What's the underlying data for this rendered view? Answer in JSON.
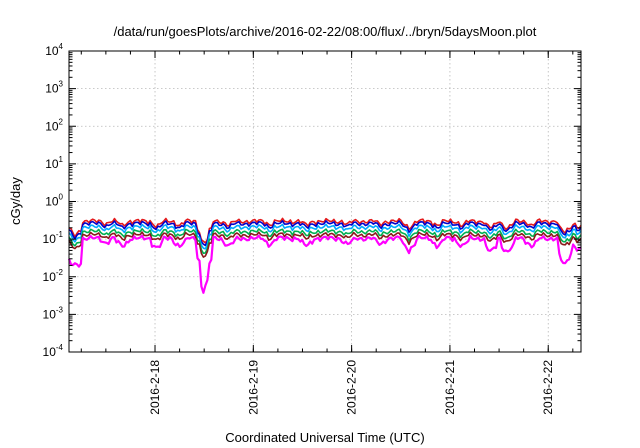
{
  "chart_data": {
    "type": "line",
    "title": "/data/run/goesPlots/archive/2016-02-22/08:00/flux/../bryn/5daysMoon.plot",
    "xlabel": "Coordinated Universal Time (UTC)",
    "ylabel": "cGy/day",
    "yscale": "log",
    "ylim": [
      0.0001,
      10000
    ],
    "yticks": [
      {
        "base": "10",
        "exp": "-4",
        "value": 0.0001
      },
      {
        "base": "10",
        "exp": "-3",
        "value": 0.001
      },
      {
        "base": "10",
        "exp": "-2",
        "value": 0.01
      },
      {
        "base": "10",
        "exp": "-1",
        "value": 0.1
      },
      {
        "base": "10",
        "exp": "0",
        "value": 1
      },
      {
        "base": "10",
        "exp": "1",
        "value": 10
      },
      {
        "base": "10",
        "exp": "2",
        "value": 100
      },
      {
        "base": "10",
        "exp": "3",
        "value": 1000
      },
      {
        "base": "10",
        "exp": "4",
        "value": 10000
      }
    ],
    "xlim": [
      "2016-02-17T03:00",
      "2016-02-22T08:00"
    ],
    "xticks": [
      {
        "label": "2016-2-18",
        "date": "2016-02-18T00:00"
      },
      {
        "label": "2016-2-19",
        "date": "2016-02-19T00:00"
      },
      {
        "label": "2016-2-20",
        "date": "2016-02-20T00:00"
      },
      {
        "label": "2016-2-21",
        "date": "2016-02-21T00:00"
      },
      {
        "label": "2016-2-22",
        "date": "2016-02-22T00:00"
      }
    ],
    "grid": true,
    "series": [
      {
        "color": "#e41a1c",
        "base": 0.3,
        "dip": 0.88
      },
      {
        "color": "#0000cc",
        "base": 0.26,
        "dip": 0.86
      },
      {
        "color": "#00aaff",
        "base": 0.21,
        "dip": 0.8
      },
      {
        "color": "#00b050",
        "base": 0.16,
        "dip": 0.78
      },
      {
        "color": "#8b1a1a",
        "base": 0.13,
        "dip": 0.76
      },
      {
        "color": "#ff00ff",
        "base": 0.105,
        "dip": 0.7
      }
    ],
    "dips": [
      {
        "date": "2016-02-17T04:30",
        "depth": 0.25
      },
      {
        "date": "2016-02-17T12:00",
        "depth": 0.8
      },
      {
        "date": "2016-02-17T16:00",
        "depth": 0.7
      },
      {
        "date": "2016-02-18T00:30",
        "depth": 0.65
      },
      {
        "date": "2016-02-18T06:00",
        "depth": 0.7
      },
      {
        "date": "2016-02-18T11:30",
        "depth": 0.35
      },
      {
        "date": "2016-02-18T12:30",
        "depth": 0.3
      },
      {
        "date": "2016-02-18T18:00",
        "depth": 0.7
      },
      {
        "date": "2016-02-19T04:00",
        "depth": 0.75
      },
      {
        "date": "2016-02-19T13:00",
        "depth": 0.7
      },
      {
        "date": "2016-02-19T23:00",
        "depth": 0.75
      },
      {
        "date": "2016-02-20T07:00",
        "depth": 0.75
      },
      {
        "date": "2016-02-20T14:00",
        "depth": 0.6
      },
      {
        "date": "2016-02-20T21:00",
        "depth": 0.7
      },
      {
        "date": "2016-02-21T03:00",
        "depth": 0.7
      },
      {
        "date": "2016-02-21T10:00",
        "depth": 0.55
      },
      {
        "date": "2016-02-21T14:00",
        "depth": 0.55
      },
      {
        "date": "2016-02-21T20:00",
        "depth": 0.7
      },
      {
        "date": "2016-02-22T04:00",
        "depth": 0.35
      },
      {
        "date": "2016-02-22T07:30",
        "depth": 0.6
      }
    ]
  }
}
